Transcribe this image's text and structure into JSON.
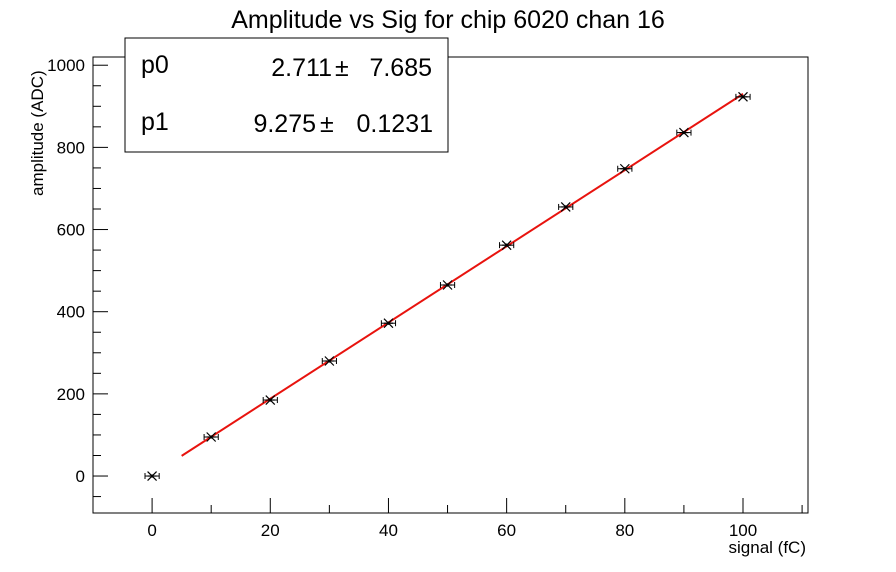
{
  "chart_data": {
    "type": "scatter",
    "title": "Amplitude vs Sig for chip 6020 chan 16",
    "xlabel": "signal (fC)",
    "ylabel": "amplitude (ADC)",
    "xlim": [
      -10,
      111
    ],
    "ylim": [
      -90,
      1020
    ],
    "x_ticks": [
      0,
      20,
      40,
      60,
      80,
      100
    ],
    "y_ticks": [
      0,
      200,
      400,
      600,
      800,
      1000
    ],
    "x_tick_labels": [
      "0",
      "20",
      "40",
      "60",
      "80",
      "100"
    ],
    "y_tick_labels": [
      "0",
      "200",
      "400",
      "600",
      "800",
      "1000"
    ],
    "grid": false,
    "series": [
      {
        "x": [
          0,
          10,
          20,
          30,
          40,
          50,
          60,
          70,
          80,
          90,
          100
        ],
        "y": [
          0,
          95,
          185,
          280,
          372,
          465,
          562,
          655,
          748,
          836,
          923
        ],
        "marker": "star",
        "color": "#000000",
        "x_error": 1.2,
        "y_error": 4
      }
    ],
    "fit": {
      "type": "line",
      "color": "#e8130e",
      "x_range": [
        5,
        100
      ],
      "intercept": 2.711,
      "slope": 9.275
    },
    "stats_box": {
      "rows": [
        {
          "name": "p0",
          "value": "2.711",
          "pm": "±",
          "error": "7.685"
        },
        {
          "name": "p1",
          "value": "9.275",
          "pm": "±",
          "error": "0.1231"
        }
      ]
    }
  }
}
